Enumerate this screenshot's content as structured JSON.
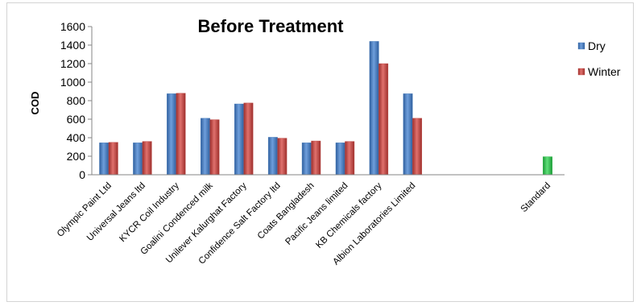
{
  "chart_data": {
    "type": "bar",
    "title": "Before Treatment",
    "ylabel": "COD",
    "xlabel": "",
    "ylim": [
      0,
      1600
    ],
    "yticks": [
      0,
      200,
      400,
      600,
      800,
      1000,
      1200,
      1400,
      1600
    ],
    "grid": false,
    "legend_position": "right",
    "categories": [
      "Olympic Paint Ltd",
      "Universal Jeans ltd",
      "KYCR Coil Industry",
      "Goalini Condenced milk",
      "Unilever Kalurghat Factory",
      "Confidence Salt Factory ltd",
      "Coats Bangladesh",
      "Pacific Jeans limited",
      "KB Chemicals factory",
      "Albion Laboratories Limited",
      "",
      "",
      "",
      "Standard"
    ],
    "series": [
      {
        "name": "Dry",
        "color": "#4a7ebb",
        "values": [
          345,
          345,
          875,
          610,
          765,
          405,
          345,
          345,
          1440,
          875,
          null,
          null,
          null,
          null
        ]
      },
      {
        "name": "Winter",
        "color": "#be4b48",
        "values": [
          350,
          360,
          880,
          595,
          775,
          395,
          365,
          360,
          1200,
          610,
          null,
          null,
          null,
          null
        ]
      },
      {
        "name": "",
        "color": "#2fb84a",
        "show_in_legend": false,
        "values": [
          null,
          null,
          null,
          null,
          null,
          null,
          null,
          null,
          null,
          null,
          null,
          null,
          null,
          195
        ]
      }
    ]
  }
}
